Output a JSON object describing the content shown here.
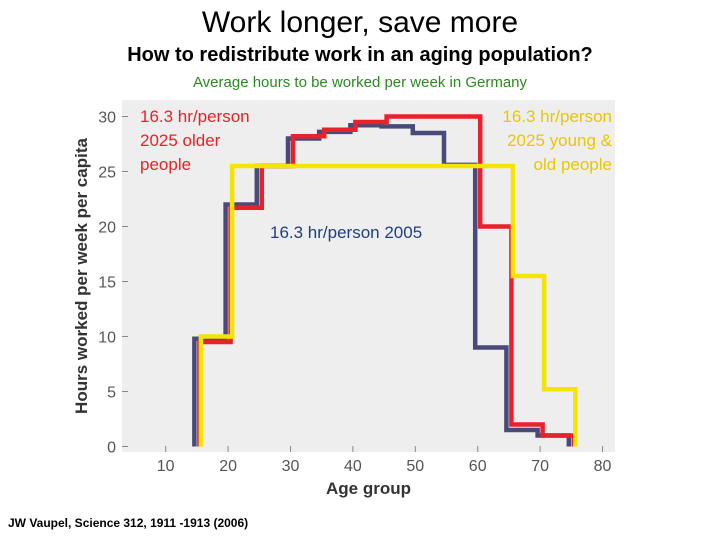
{
  "title": "Work longer, save more",
  "subtitle": "How to redistribute work in an aging population?",
  "caption": "Average hours to be worked per week in Germany",
  "citation": "JW  Vaupel,  Science  312, 1911 -1913 (2006)",
  "annotations": {
    "older_line1": "16.3 hr/person",
    "older_line2": "2025 older",
    "older_line3": "people",
    "young_line1": "16.3 hr/person",
    "young_line2": "2025 young &",
    "young_line3": "old people",
    "current": "16.3 hr/person 2005"
  },
  "colors": {
    "series_2005": "#4a4a7a",
    "series_2025_older": "#e8222a",
    "series_2025_young_old": "#f5e400",
    "annotation_red": "#e8222a",
    "annotation_yellow": "#e6c800",
    "annotation_blue": "#1f3f7f",
    "caption_green": "#2a8a1e",
    "plot_background": "#eeeeee"
  },
  "chart_data": {
    "type": "line",
    "step": true,
    "xlabel": "Age group",
    "ylabel": "Hours worked per week per capita",
    "xlim": [
      3,
      82
    ],
    "ylim": [
      -0.5,
      31.5
    ],
    "xticks": [
      10,
      20,
      30,
      40,
      50,
      60,
      70,
      80
    ],
    "yticks": [
      0,
      5,
      10,
      15,
      20,
      25,
      30
    ],
    "grid": false,
    "series": [
      {
        "name": "16.3 hr/person 2005",
        "color_key": "series_2005",
        "edges": [
          15,
          20,
          25,
          30,
          35,
          40,
          45,
          50,
          55,
          60,
          65,
          70,
          75
        ],
        "values": [
          9.8,
          22,
          25.5,
          28,
          28.6,
          29.2,
          29.1,
          28.5,
          25.6,
          9,
          1.5,
          1
        ]
      },
      {
        "name": "16.3 hr/person 2025 older people",
        "color_key": "series_2025_older",
        "edges": [
          15,
          20,
          25,
          30,
          35,
          40,
          45,
          50,
          55,
          60,
          65,
          70,
          75
        ],
        "values": [
          9.5,
          21.7,
          25.5,
          28.2,
          28.8,
          29.5,
          30,
          30,
          30,
          20,
          2,
          1
        ]
      },
      {
        "name": "16.3 hr/person 2025 young & old people",
        "color_key": "series_2025_young_old",
        "edges": [
          15,
          20,
          65,
          70,
          75
        ],
        "values": [
          10,
          25.5,
          15.5,
          5.2
        ]
      }
    ]
  }
}
